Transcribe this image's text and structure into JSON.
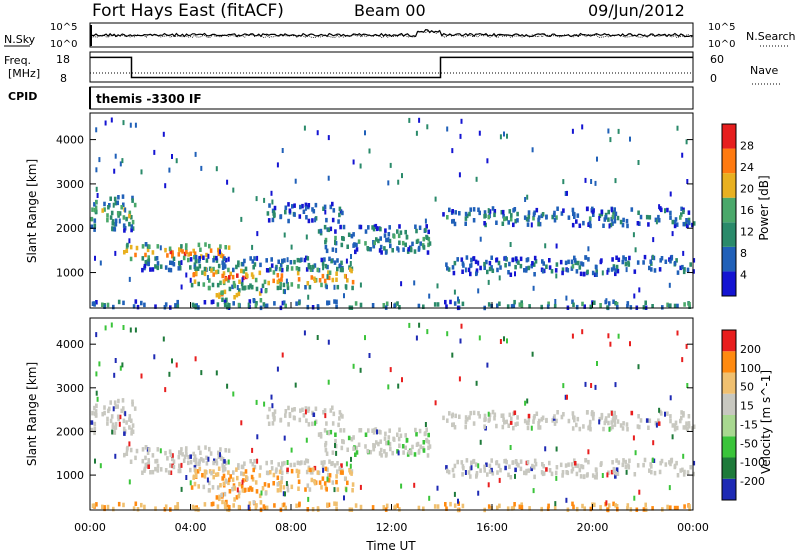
{
  "header": {
    "title": "Fort Hays East (fitACF)",
    "beam": "Beam 00",
    "date": "09/Jun/2012"
  },
  "noise_panel": {
    "left_label": "N.Sky",
    "right_label": "N.Search",
    "left_ticks": [
      "10^5",
      "10^0"
    ],
    "right_ticks": [
      "10^5",
      "10^0"
    ]
  },
  "freq_panel": {
    "left_label_1": "Freq.",
    "left_label_2": "[MHz]",
    "right_label": "Nave",
    "left_ticks": [
      "18",
      "8"
    ],
    "right_ticks": [
      "60",
      "0"
    ],
    "freq_steps": [
      {
        "start_h": 0,
        "end_h": 1.65,
        "level": 0.82
      },
      {
        "start_h": 1.65,
        "end_h": 13.95,
        "level": 0.15
      },
      {
        "start_h": 13.95,
        "end_h": 24,
        "level": 0.82
      }
    ]
  },
  "cpid": {
    "label": "CPID",
    "mode": "themis -3300 IF"
  },
  "chart_data": [
    {
      "type": "heatmap",
      "title": "Power",
      "ylabel": "Slant Range [km]",
      "xlabel": "Time UT",
      "xlim": [
        0,
        24
      ],
      "ylim": [
        200,
        4600
      ],
      "y_ticks": [
        "1000",
        "2000",
        "3000",
        "4000"
      ],
      "x_ticks": [
        "00:00",
        "04:00",
        "08:00",
        "12:00",
        "16:00",
        "20:00",
        "00:00"
      ],
      "colorbar": {
        "label": "Power [dB]",
        "ticks": [
          "4",
          "8",
          "12",
          "16",
          "20",
          "24",
          "28"
        ],
        "range": [
          0,
          32
        ],
        "colors": [
          "#1414d2",
          "#2060b8",
          "#2a8a6a",
          "#4aa86a",
          "#e8b020",
          "#ff7a10",
          "#e61e1e"
        ]
      }
    },
    {
      "type": "heatmap",
      "title": "Velocity",
      "ylabel": "Slant Range [km]",
      "xlabel": "Time UT",
      "xlim": [
        0,
        24
      ],
      "ylim": [
        200,
        4600
      ],
      "y_ticks": [
        "1000",
        "2000",
        "3000",
        "4000"
      ],
      "x_ticks": [
        "00:00",
        "04:00",
        "08:00",
        "12:00",
        "16:00",
        "20:00",
        "00:00"
      ],
      "colorbar": {
        "label": "Velocity [m s^-1]",
        "ticks": [
          "200",
          "100",
          "50",
          "15",
          "-15",
          "-50",
          "-100",
          "-200"
        ],
        "colors": [
          "#1e2ab4",
          "#1e7a3a",
          "#3ac43a",
          "#a8d890",
          "#c8c8c0",
          "#f0c070",
          "#ff8a10",
          "#e81e1e"
        ]
      }
    }
  ],
  "x_axis_label": "Time UT",
  "x_ticks": [
    "00:00",
    "04:00",
    "08:00",
    "12:00",
    "16:00",
    "20:00",
    "00:00"
  ]
}
